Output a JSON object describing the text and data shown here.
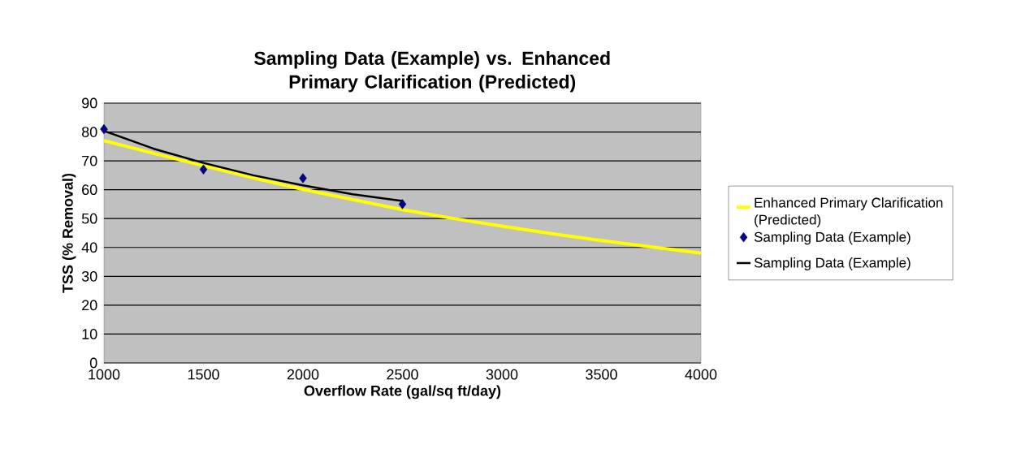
{
  "chart_data": {
    "type": "line",
    "title": "Sampling Data (Example) vs. Enhanced Primary Clarification (Predicted)",
    "xlabel": "Overflow Rate (gal/sq ft/day)",
    "ylabel": "TSS (% Removal)",
    "xlim": [
      1000,
      4000
    ],
    "xticks": [
      1000,
      1500,
      2000,
      2500,
      3000,
      3500,
      4000
    ],
    "ylim": [
      0,
      90
    ],
    "yticks": [
      0,
      10,
      20,
      30,
      40,
      50,
      60,
      70,
      80,
      90
    ],
    "grid": "y",
    "legend": "right",
    "series": [
      {
        "name": "Enhanced Primary Clarification (Predicted)",
        "color": "#ffff00",
        "marker": "none",
        "x": [
          1000,
          1250,
          1500,
          1750,
          2000,
          2250,
          2500,
          2750,
          3000,
          3250,
          3500,
          3750,
          4000
        ],
        "values": [
          77.0,
          72.6,
          68.3,
          64.1,
          60.1,
          56.6,
          53.1,
          50.1,
          47.4,
          44.8,
          42.4,
          40.2,
          38.0
        ]
      },
      {
        "name": "Sampling Data (Example)",
        "type": "scatter",
        "color": "#000080",
        "marker": "diamond",
        "x": [
          1000,
          1500,
          2000,
          2500
        ],
        "values": [
          81,
          67,
          64,
          55
        ]
      },
      {
        "name": "Sampling Data (Example)",
        "color": "#000000",
        "marker": "none",
        "x": [
          1000,
          1250,
          1500,
          1750,
          2000,
          2250,
          2500
        ],
        "values": [
          80.4,
          74.2,
          69.3,
          65.0,
          61.5,
          58.4,
          56.1
        ]
      }
    ]
  }
}
